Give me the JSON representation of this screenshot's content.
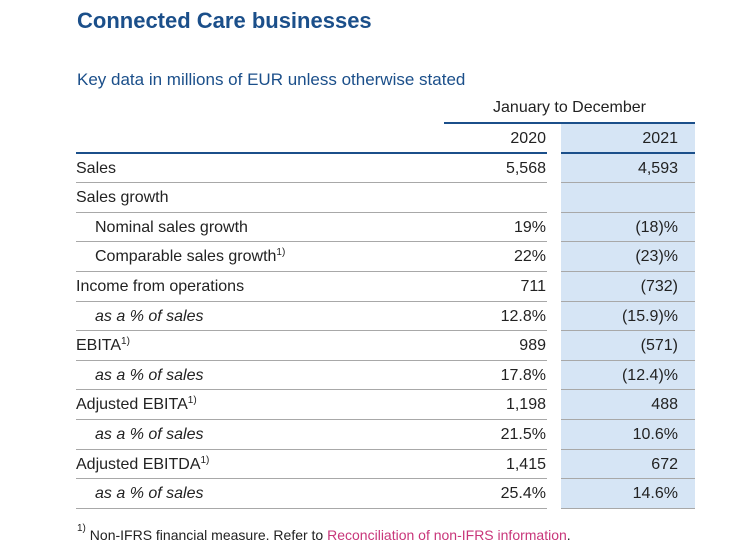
{
  "title": "Connected Care businesses",
  "subtitle": "Key data in millions of EUR unless otherwise stated",
  "period": "January to December",
  "columns": [
    "2020",
    "2021"
  ],
  "rows": [
    {
      "label": "Sales",
      "sup": "",
      "v2020": "5,568",
      "v2021": "4,593",
      "style": "normal"
    },
    {
      "label": "Sales growth",
      "sup": "",
      "v2020": "",
      "v2021": "",
      "style": "normal"
    },
    {
      "label": "Nominal sales growth",
      "sup": "",
      "v2020": "19%",
      "v2021": "(18)%",
      "style": "indent"
    },
    {
      "label": "Comparable sales growth",
      "sup": "1)",
      "v2020": "22%",
      "v2021": "(23)%",
      "style": "indent"
    },
    {
      "label": "Income from operations",
      "sup": "",
      "v2020": "711",
      "v2021": "(732)",
      "style": "normal"
    },
    {
      "label": "as a % of sales",
      "sup": "",
      "v2020": "12.8%",
      "v2021": "(15.9)%",
      "style": "indent-italic"
    },
    {
      "label": "EBITA",
      "sup": "1)",
      "v2020": "989",
      "v2021": "(571)",
      "style": "normal"
    },
    {
      "label": "as a % of sales",
      "sup": "",
      "v2020": "17.8%",
      "v2021": "(12.4)%",
      "style": "indent-italic"
    },
    {
      "label": "Adjusted EBITA",
      "sup": "1)",
      "v2020": "1,198",
      "v2021": "488",
      "style": "normal"
    },
    {
      "label": "as a % of sales",
      "sup": "",
      "v2020": "21.5%",
      "v2021": "10.6%",
      "style": "indent-italic"
    },
    {
      "label": "Adjusted EBITDA",
      "sup": "1)",
      "v2020": "1,415",
      "v2021": "672",
      "style": "normal"
    },
    {
      "label": "as a % of sales",
      "sup": "",
      "v2020": "25.4%",
      "v2021": "14.6%",
      "style": "indent-italic"
    }
  ],
  "footnote": {
    "marker": "1)",
    "text": " Non-IFRS financial measure. Refer to ",
    "link": "Reconciliation of non-IFRS information",
    "end": "."
  },
  "colors": {
    "title": "#1b4f8a",
    "highlight": "#d6e5f5",
    "link": "#c8367a"
  }
}
